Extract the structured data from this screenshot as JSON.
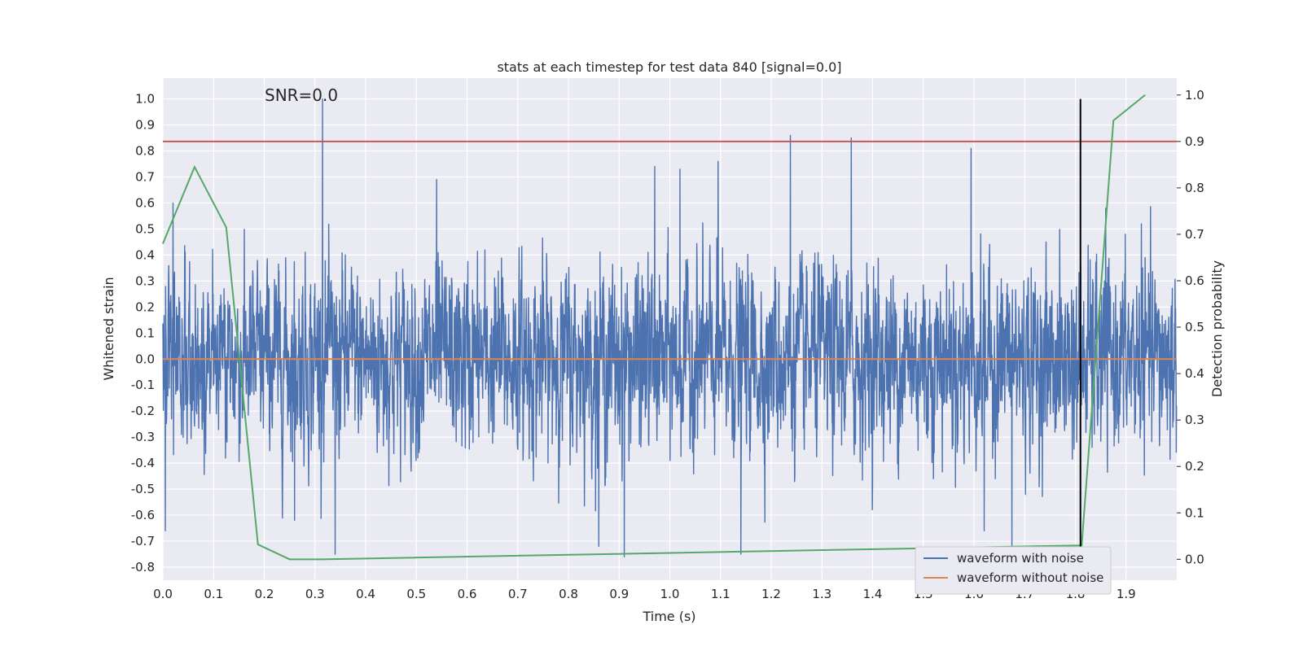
{
  "chart_data": {
    "type": "line",
    "title": "stats at each timestep for test data 840 [signal=0.0]",
    "annotation": "SNR=0.0",
    "xlabel": "Time (s)",
    "ylabel_left": "Whitened strain",
    "ylabel_right": "Detection probability",
    "xlim": [
      0.0,
      2.0
    ],
    "ylim_left": [
      -0.85,
      1.08
    ],
    "ylim_right": [
      -0.045,
      1.0364
    ],
    "x_ticks": [
      "0.0",
      "0.1",
      "0.2",
      "0.3",
      "0.4",
      "0.5",
      "0.6",
      "0.7",
      "0.8",
      "0.9",
      "1.0",
      "1.1",
      "1.2",
      "1.3",
      "1.4",
      "1.5",
      "1.6",
      "1.7",
      "1.8",
      "1.9"
    ],
    "y_ticks_left": [
      "1.0",
      "0.9",
      "0.8",
      "0.7",
      "0.6",
      "0.5",
      "0.4",
      "0.3",
      "0.2",
      "0.1",
      "0.0",
      "-0.1",
      "-0.2",
      "-0.3",
      "-0.4",
      "-0.5",
      "-0.6",
      "-0.7",
      "-0.8"
    ],
    "y_ticks_right": [
      "1.0",
      "0.9",
      "0.8",
      "0.7",
      "0.6",
      "0.5",
      "0.4",
      "0.3",
      "0.2",
      "0.1",
      "0.0"
    ],
    "grid": true,
    "legend_position": "bottom-right",
    "legend": [
      "waveform with noise",
      "waveform without noise"
    ],
    "threshold_probability": 0.9,
    "marker_time": 1.81,
    "marker_top": 1.0,
    "series": [
      {
        "name": "waveform with noise",
        "axis": "left",
        "color": "#4c72b0",
        "sample_rate": 2048,
        "noise_std": 0.28,
        "clip": [
          -0.76,
          1.0
        ],
        "peaks": [
          [
            0.315,
            1.0
          ],
          [
            1.238,
            0.86
          ],
          [
            1.358,
            0.85
          ],
          [
            1.594,
            0.81
          ],
          [
            0.02,
            0.6
          ],
          [
            0.54,
            0.69
          ],
          [
            0.97,
            0.74
          ],
          [
            1.095,
            0.76
          ],
          [
            1.02,
            0.73
          ],
          [
            0.91,
            -0.76
          ],
          [
            0.34,
            -0.75
          ],
          [
            1.14,
            -0.75
          ],
          [
            1.675,
            -0.76
          ],
          [
            1.81,
            -0.72
          ],
          [
            0.005,
            -0.66
          ],
          [
            0.86,
            -0.72
          ],
          [
            1.62,
            -0.66
          ],
          [
            0.26,
            -0.62
          ],
          [
            1.86,
            0.58
          ],
          [
            1.93,
            0.52
          ]
        ]
      },
      {
        "name": "waveform without noise",
        "axis": "left",
        "color": "#dd8452",
        "x": [
          0.0,
          2.0
        ],
        "y": [
          0.0,
          0.0
        ]
      },
      {
        "axis": "right",
        "color": "#55a868",
        "x": [
          0.0,
          0.0625,
          0.125,
          0.1875,
          0.25,
          0.3125,
          1.8125,
          1.875,
          1.9375
        ],
        "y": [
          0.68,
          0.845,
          0.715,
          0.032,
          0.0,
          0.0,
          0.03,
          0.945,
          1.0
        ]
      }
    ],
    "colors": {
      "background": "#eaeaf2",
      "grid": "#ffffff",
      "threshold": "#c44e52",
      "marker": "#000000",
      "noise": "#4c72b0",
      "clean": "#dd8452",
      "probability": "#55a868"
    }
  }
}
